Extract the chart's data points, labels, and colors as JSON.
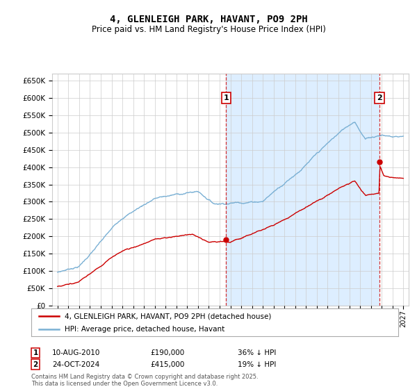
{
  "title": "4, GLENLEIGH PARK, HAVANT, PO9 2PH",
  "subtitle": "Price paid vs. HM Land Registry's House Price Index (HPI)",
  "ylim": [
    0,
    650000
  ],
  "yticks": [
    0,
    50000,
    100000,
    150000,
    200000,
    250000,
    300000,
    350000,
    400000,
    450000,
    500000,
    550000,
    600000,
    650000
  ],
  "background_color": "#ffffff",
  "grid_color": "#cccccc",
  "hpi_color": "#7ab0d4",
  "price_color": "#cc0000",
  "shade_color": "#ddeeff",
  "sale1_x": 2010.6,
  "sale1_price": 190000,
  "sale1_date_str": "10-AUG-2010",
  "sale1_hpi_pct": "36% ↓ HPI",
  "sale2_x": 2024.8,
  "sale2_price": 415000,
  "sale2_date_str": "24-OCT-2024",
  "sale2_hpi_pct": "19% ↓ HPI",
  "legend_line1": "4, GLENLEIGH PARK, HAVANT, PO9 2PH (detached house)",
  "legend_line2": "HPI: Average price, detached house, Havant",
  "footnote": "Contains HM Land Registry data © Crown copyright and database right 2025.\nThis data is licensed under the Open Government Licence v3.0.",
  "xmin": 1994.5,
  "xmax": 2027.5,
  "xtick_start": 1995,
  "xtick_end": 2027
}
